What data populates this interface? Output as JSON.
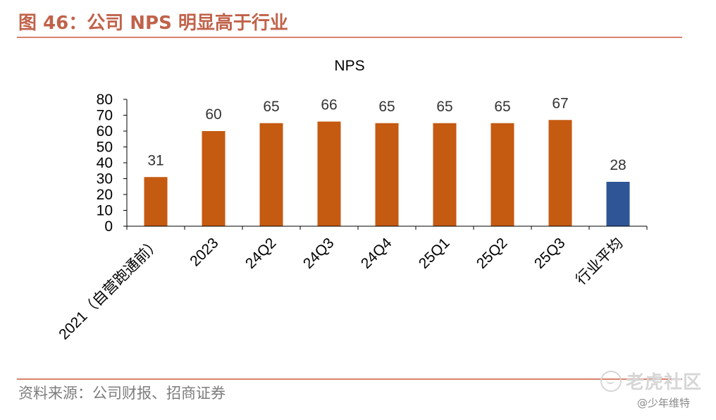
{
  "figure": {
    "title": "图 46：公司 NPS 明显高于行业",
    "source": "资料来源：公司财报、招商证券"
  },
  "watermark": {
    "logo_text": "老虎社区",
    "user": "@少年维特"
  },
  "colors": {
    "title": "#c0624a",
    "rule": "#d9826a",
    "bar_company": "#c55a11",
    "bar_industry": "#2f5597"
  },
  "chart_data": {
    "type": "bar",
    "title": "NPS",
    "xlabel": "",
    "ylabel": "",
    "categories": [
      "2021（自营跑通前）",
      "2023",
      "24Q2",
      "24Q3",
      "24Q4",
      "25Q1",
      "25Q2",
      "25Q3",
      "行业平均"
    ],
    "values": [
      31,
      60,
      65,
      66,
      65,
      65,
      65,
      67,
      28
    ],
    "bar_colors": [
      "#c55a11",
      "#c55a11",
      "#c55a11",
      "#c55a11",
      "#c55a11",
      "#c55a11",
      "#c55a11",
      "#c55a11",
      "#2f5597"
    ],
    "ylim": [
      0,
      80
    ],
    "yticks": [
      0,
      10,
      20,
      30,
      40,
      50,
      60,
      70,
      80
    ],
    "data_labels": true,
    "grid": false,
    "legend": "none",
    "xtick_rotation": "-45"
  }
}
